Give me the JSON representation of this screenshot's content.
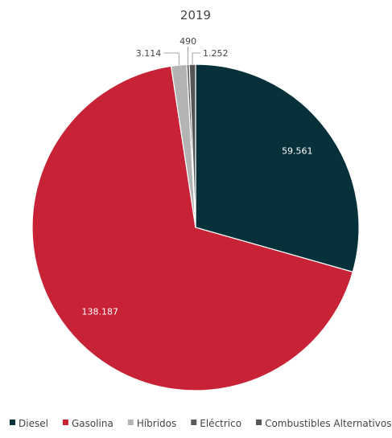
{
  "chart_data": {
    "type": "pie",
    "title": "2019",
    "categories": [
      "Diesel",
      "Gasolina",
      "Híbridos",
      "Eléctrico",
      "Combustibles Alternativos"
    ],
    "values": [
      59561,
      138187,
      3114,
      490,
      1252
    ],
    "value_labels": [
      "59.561",
      "138.187",
      "3.114",
      "490",
      "1.252"
    ],
    "colors": [
      "#06313a",
      "#c72236",
      "#b4b4b4",
      "#5a5a5a",
      "#555555"
    ],
    "legend_position": "bottom",
    "start_angle_deg": 0,
    "direction": "clockwise"
  }
}
